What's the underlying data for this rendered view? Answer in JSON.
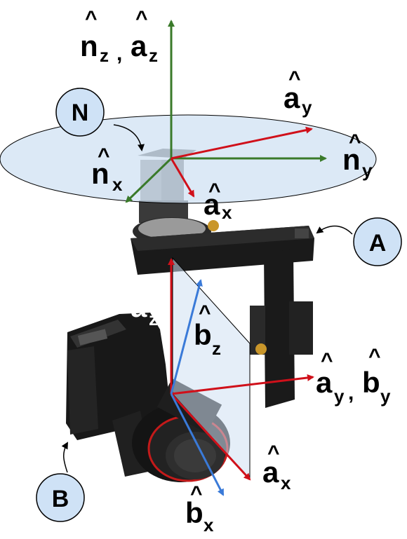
{
  "frames": {
    "N": {
      "name": "N",
      "axes": {
        "x": "n",
        "y": "n",
        "z": "n"
      },
      "subscripts": {
        "x": "x",
        "y": "y",
        "z": "z"
      }
    },
    "A": {
      "name": "A",
      "axes": {
        "x": "a",
        "y": "a",
        "z": "a"
      }
    },
    "B": {
      "name": "B",
      "axes": {
        "x": "b",
        "y": "b",
        "z": "b"
      }
    }
  },
  "labels": {
    "top_z": {
      "n": "n",
      "nsub": "z",
      "sep": ",",
      "a": "a",
      "asub": "z"
    },
    "top_ay": {
      "base": "a",
      "sub": "y"
    },
    "top_ny": {
      "base": "n",
      "sub": "y"
    },
    "top_nx": {
      "base": "n",
      "sub": "x"
    },
    "top_ax": {
      "base": "a",
      "sub": "x"
    },
    "low_az": {
      "base": "a",
      "sub": "z"
    },
    "low_bz": {
      "base": "b",
      "sub": "z"
    },
    "low_ay_by": {
      "a": "a",
      "asub": "y",
      "sep": ",",
      "b": "b",
      "bsub": "y"
    },
    "low_ax": {
      "base": "a",
      "sub": "x"
    },
    "low_bx": {
      "base": "b",
      "sub": "x"
    },
    "hat": "^"
  },
  "colors": {
    "green_axis": "#3a7a2a",
    "red_axis": "#d0101a",
    "blue_axis": "#3a7ad8",
    "plane_fill": "#cfe0f2",
    "bubble_fill": "#cfe2f6",
    "gimbal_dark": "#1a1a1a",
    "text": "#000000"
  }
}
